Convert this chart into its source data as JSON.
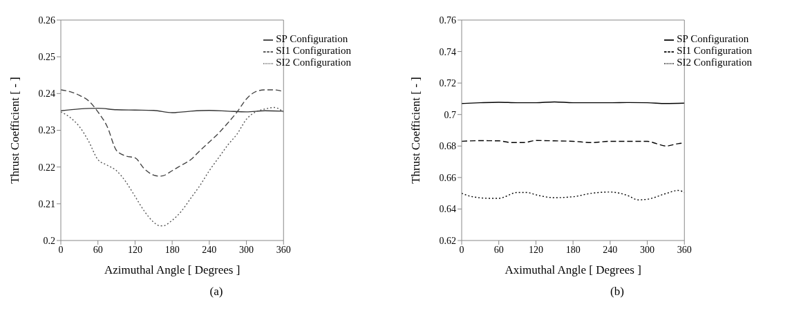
{
  "chart_data": [
    {
      "type": "line",
      "xlabel": "Azimuthal Angle [ Degrees ]",
      "ylabel": "Thrust Coefficient [ - ]",
      "annotations": [
        "(a)"
      ],
      "xlim": [
        0,
        360
      ],
      "xticks": [
        0,
        60,
        120,
        180,
        240,
        300,
        360
      ],
      "ylim": [
        0.2,
        0.26
      ],
      "yticks": [
        0.2,
        0.21,
        0.22,
        0.23,
        0.24,
        0.25,
        0.26
      ],
      "legend": "top right",
      "grid": false,
      "marker": "none",
      "series": [
        {
          "name": "SP Configuration",
          "color": "#333333",
          "line_style": "solid",
          "x": [
            0,
            30,
            60,
            90,
            120,
            150,
            180,
            210,
            240,
            270,
            300,
            330,
            360
          ],
          "values": [
            0.2353,
            0.2358,
            0.236,
            0.2356,
            0.2355,
            0.2354,
            0.2348,
            0.2352,
            0.2354,
            0.2352,
            0.235,
            0.2353,
            0.2352
          ]
        },
        {
          "name": "SI1 Configuration",
          "color": "#444444",
          "line_style": "dashed",
          "x": [
            0,
            15,
            30,
            45,
            60,
            75,
            90,
            105,
            120,
            135,
            150,
            160,
            165,
            180,
            195,
            210,
            225,
            240,
            255,
            270,
            285,
            300,
            315,
            330,
            345,
            360
          ],
          "values": [
            0.241,
            0.2405,
            0.2395,
            0.238,
            0.235,
            0.231,
            0.2245,
            0.223,
            0.2225,
            0.2195,
            0.2178,
            0.2175,
            0.2176,
            0.219,
            0.2205,
            0.222,
            0.2245,
            0.2268,
            0.2292,
            0.232,
            0.235,
            0.2385,
            0.2405,
            0.241,
            0.241,
            0.2405
          ]
        },
        {
          "name": "SI2 Configuration",
          "color": "#555555",
          "line_style": "dotted",
          "x": [
            0,
            15,
            30,
            45,
            60,
            75,
            90,
            105,
            120,
            135,
            150,
            160,
            165,
            180,
            195,
            210,
            225,
            240,
            255,
            270,
            285,
            300,
            315,
            330,
            345,
            360
          ],
          "values": [
            0.235,
            0.2335,
            0.231,
            0.227,
            0.222,
            0.2205,
            0.219,
            0.216,
            0.212,
            0.208,
            0.205,
            0.204,
            0.204,
            0.2055,
            0.208,
            0.2115,
            0.215,
            0.219,
            0.2225,
            0.226,
            0.229,
            0.233,
            0.235,
            0.2358,
            0.2362,
            0.235
          ]
        }
      ]
    },
    {
      "type": "line",
      "xlabel": "Aximuthal Angle [ Degrees ]",
      "ylabel": "Thrust Coefficient [ - ]",
      "annotations": [
        "(b)"
      ],
      "xlim": [
        0,
        360
      ],
      "xticks": [
        0,
        60,
        120,
        180,
        240,
        300,
        360
      ],
      "ylim": [
        0.62,
        0.76
      ],
      "yticks": [
        0.62,
        0.64,
        0.66,
        0.68,
        0.7,
        0.72,
        0.74,
        0.76
      ],
      "legend": "top right",
      "grid": false,
      "marker": "none",
      "series": [
        {
          "name": "SP Configuration",
          "color": "#000000",
          "line_style": "solid",
          "x": [
            0,
            30,
            60,
            90,
            120,
            150,
            180,
            210,
            240,
            270,
            300,
            330,
            360
          ],
          "values": [
            0.707,
            0.7075,
            0.7078,
            0.7075,
            0.7075,
            0.708,
            0.7075,
            0.7075,
            0.7075,
            0.7076,
            0.7075,
            0.707,
            0.7072
          ]
        },
        {
          "name": "SI1 Configuration",
          "color": "#000000",
          "line_style": "dashed",
          "x": [
            0,
            30,
            60,
            80,
            100,
            120,
            150,
            180,
            210,
            240,
            270,
            300,
            315,
            330,
            350,
            360
          ],
          "values": [
            0.683,
            0.6834,
            0.6833,
            0.6822,
            0.6822,
            0.6835,
            0.6833,
            0.683,
            0.6822,
            0.683,
            0.683,
            0.683,
            0.6815,
            0.68,
            0.6815,
            0.682
          ]
        },
        {
          "name": "SI2 Configuration",
          "color": "#000000",
          "line_style": "dotted",
          "x": [
            0,
            15,
            45,
            60,
            90,
            105,
            120,
            150,
            180,
            210,
            240,
            270,
            285,
            300,
            330,
            350,
            360
          ],
          "values": [
            0.65,
            0.648,
            0.6468,
            0.6468,
            0.6505,
            0.6505,
            0.649,
            0.6472,
            0.6478,
            0.65,
            0.6508,
            0.6483,
            0.6458,
            0.6462,
            0.6498,
            0.6518,
            0.6505
          ]
        }
      ]
    }
  ]
}
